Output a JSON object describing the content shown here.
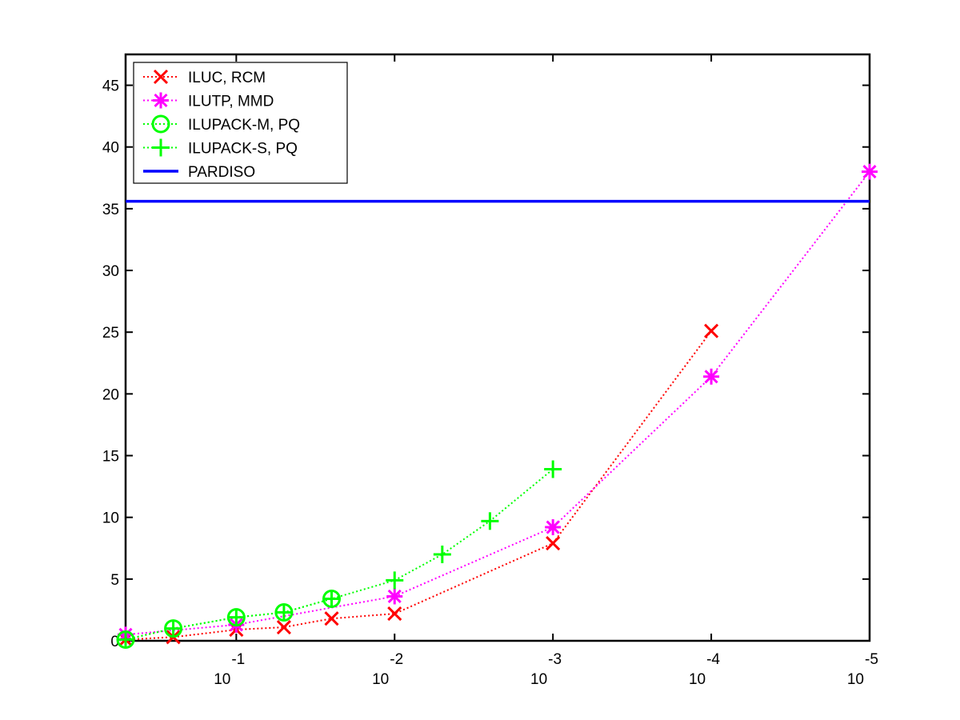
{
  "chart_data": {
    "type": "line",
    "title": "",
    "xlabel": "",
    "ylabel": "",
    "x_scale": "log-reversed",
    "xlim": [
      0.5,
      1e-05
    ],
    "ylim": [
      0,
      47.5
    ],
    "x_ticks": [
      {
        "value": 0.1,
        "base": "10",
        "exp": "-1"
      },
      {
        "value": 0.01,
        "base": "10",
        "exp": "-2"
      },
      {
        "value": 0.001,
        "base": "10",
        "exp": "-3"
      },
      {
        "value": 0.0001,
        "base": "10",
        "exp": "-4"
      },
      {
        "value": 1e-05,
        "base": "10",
        "exp": "-5"
      }
    ],
    "y_ticks": [
      {
        "value": 0,
        "label": "0"
      },
      {
        "value": 5,
        "label": "5"
      },
      {
        "value": 10,
        "label": "10"
      },
      {
        "value": 15,
        "label": "15"
      },
      {
        "value": 20,
        "label": "20"
      },
      {
        "value": 25,
        "label": "25"
      },
      {
        "value": 30,
        "label": "30"
      },
      {
        "value": 35,
        "label": "35"
      },
      {
        "value": 40,
        "label": "40"
      },
      {
        "value": 45,
        "label": "45"
      }
    ],
    "grid": false,
    "legend_position": "top-left",
    "series": [
      {
        "name": "ILUC, RCM",
        "color": "#ff0000",
        "marker": "x",
        "line_style": "dotted",
        "x": [
          0.5,
          0.25,
          0.1,
          0.05,
          0.025,
          0.01,
          0.001,
          0.0001
        ],
        "y": [
          0.1,
          0.3,
          0.9,
          1.1,
          1.8,
          2.2,
          7.9,
          25.1
        ]
      },
      {
        "name": "ILUTP, MMD",
        "color": "#ff00ff",
        "marker": "asterisk",
        "line_style": "dotted",
        "x": [
          0.5,
          0.1,
          0.01,
          0.001,
          0.0001,
          1e-05
        ],
        "y": [
          0.5,
          1.3,
          3.6,
          9.2,
          21.4,
          38.0
        ]
      },
      {
        "name": "ILUPACK-M, PQ",
        "color": "#00ff00",
        "marker": "circle",
        "line_style": "dotted",
        "x": [
          0.5,
          0.25,
          0.1,
          0.05,
          0.025
        ],
        "y": [
          0.1,
          1.0,
          1.9,
          2.3,
          3.4
        ]
      },
      {
        "name": "ILUPACK-S, PQ",
        "color": "#00ff00",
        "marker": "plus",
        "line_style": "dotted",
        "x": [
          0.5,
          0.25,
          0.1,
          0.05,
          0.025,
          0.01,
          0.005,
          0.0025,
          0.001
        ],
        "y": [
          0.1,
          1.0,
          1.9,
          2.3,
          3.4,
          4.9,
          7.0,
          9.7,
          13.9
        ]
      },
      {
        "name": "PARDISO",
        "color": "#0000ff",
        "marker": "none",
        "line_style": "solid",
        "x": [
          0.5,
          1e-05
        ],
        "y": [
          35.6,
          35.6
        ]
      }
    ]
  }
}
